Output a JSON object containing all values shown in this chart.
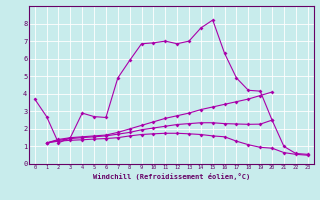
{
  "title": "",
  "xlabel": "Windchill (Refroidissement éolien,°C)",
  "ylabel": "",
  "background_color": "#c8ecec",
  "line_color": "#aa00aa",
  "grid_color": "#ffffff",
  "xlim": [
    -0.5,
    23.5
  ],
  "ylim": [
    0,
    9
  ],
  "xticks": [
    0,
    1,
    2,
    3,
    4,
    5,
    6,
    7,
    8,
    9,
    10,
    11,
    12,
    13,
    14,
    15,
    16,
    17,
    18,
    19,
    20,
    21,
    22,
    23
  ],
  "yticks": [
    0,
    1,
    2,
    3,
    4,
    5,
    6,
    7,
    8
  ],
  "lines": [
    [
      3.7,
      2.7,
      1.2,
      1.5,
      2.9,
      2.7,
      2.65,
      4.9,
      5.9,
      6.85,
      6.9,
      7.0,
      6.85,
      7.0,
      7.75,
      8.2,
      6.3,
      4.9,
      4.2,
      4.15,
      2.5,
      1.0,
      0.6,
      0.55
    ],
    [
      null,
      1.2,
      1.4,
      1.5,
      1.55,
      1.6,
      1.65,
      1.8,
      2.0,
      2.2,
      2.4,
      2.6,
      2.75,
      2.9,
      3.1,
      3.25,
      3.4,
      3.55,
      3.7,
      3.9,
      4.1,
      null,
      null,
      null
    ],
    [
      null,
      1.2,
      1.35,
      1.45,
      1.5,
      1.55,
      1.6,
      1.7,
      1.8,
      1.95,
      2.05,
      2.15,
      2.25,
      2.3,
      2.35,
      2.35,
      2.3,
      2.28,
      2.26,
      2.27,
      2.5,
      null,
      null,
      null
    ],
    [
      null,
      1.2,
      1.3,
      1.35,
      1.38,
      1.42,
      1.45,
      1.5,
      1.6,
      1.68,
      1.72,
      1.75,
      1.75,
      1.72,
      1.68,
      1.6,
      1.55,
      1.3,
      1.1,
      0.95,
      0.9,
      0.65,
      0.55,
      0.5
    ]
  ],
  "tick_color": "#660066",
  "spine_color": "#660066",
  "xlabel_fontsize": 5.0,
  "xtick_fontsize": 3.8,
  "ytick_fontsize": 5.0,
  "marker_size": 2.0,
  "linewidth": 0.8
}
